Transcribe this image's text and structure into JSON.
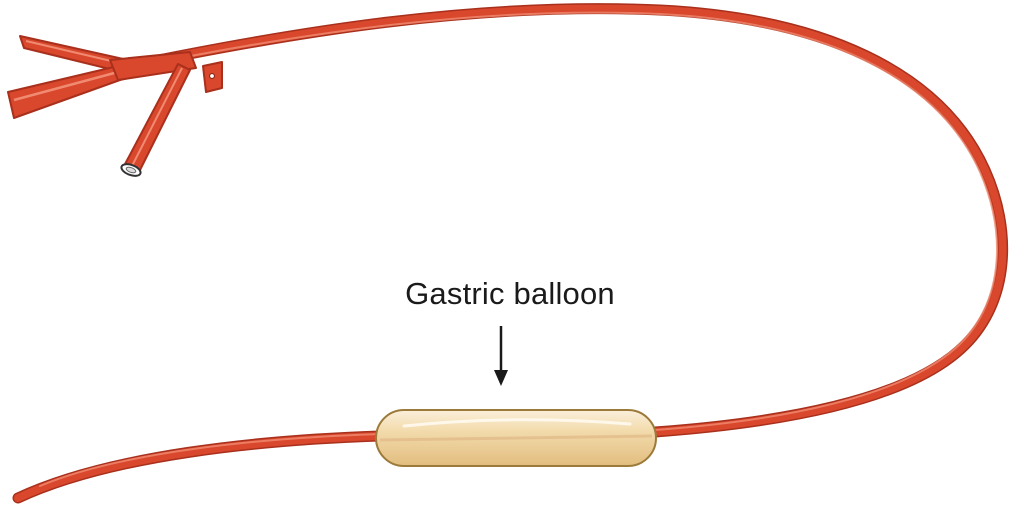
{
  "diagram": {
    "label": "Gastric balloon",
    "colors": {
      "tube": "#d9472c",
      "tube_dark": "#a8301c",
      "tube_highlight": "#f08a70",
      "balloon": "#f0d3a0",
      "balloon_edge": "#9c7a3a",
      "balloon_highlight": "#fbf0dc",
      "arrow": "#1a1a1a"
    }
  }
}
